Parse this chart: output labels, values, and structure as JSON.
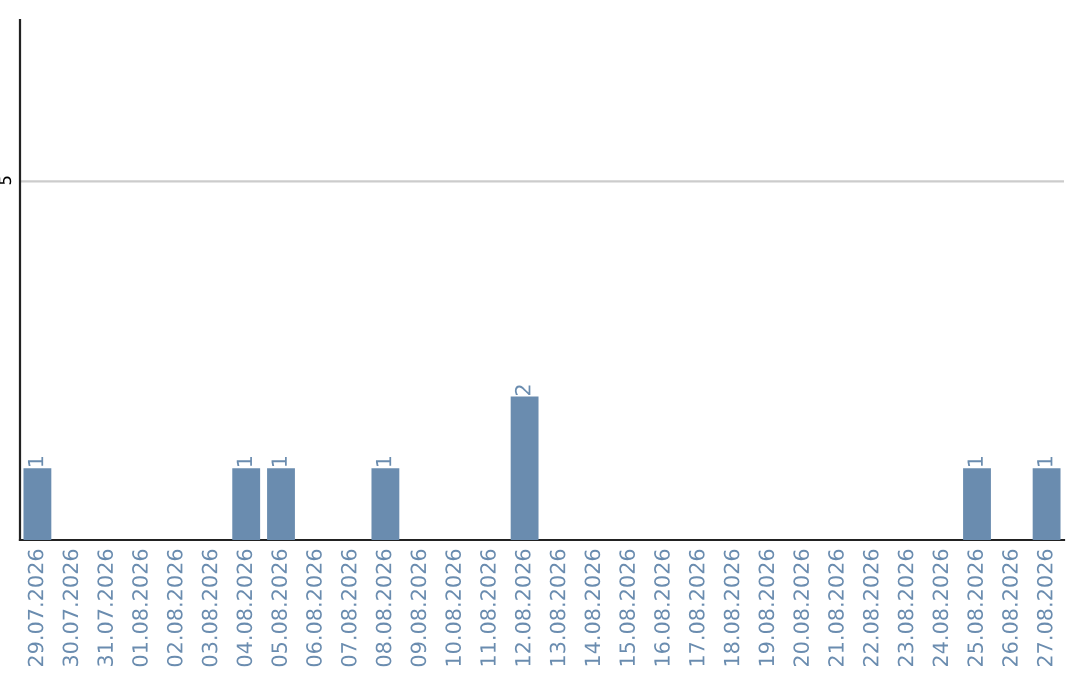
{
  "chart_data": {
    "type": "bar",
    "categories": [
      "29.07.2026",
      "30.07.2026",
      "31.07.2026",
      "01.08.2026",
      "02.08.2026",
      "03.08.2026",
      "04.08.2026",
      "05.08.2026",
      "06.08.2026",
      "07.08.2026",
      "08.08.2026",
      "09.08.2026",
      "10.08.2026",
      "11.08.2026",
      "12.08.2026",
      "13.08.2026",
      "14.08.2026",
      "15.08.2026",
      "16.08.2026",
      "17.08.2026",
      "18.08.2026",
      "19.08.2026",
      "20.08.2026",
      "21.08.2026",
      "22.08.2026",
      "23.08.2026",
      "24.08.2026",
      "25.08.2026",
      "26.08.2026",
      "27.08.2026"
    ],
    "values": [
      1,
      0,
      0,
      0,
      0,
      0,
      1,
      1,
      0,
      0,
      1,
      0,
      0,
      0,
      2,
      0,
      0,
      0,
      0,
      0,
      0,
      0,
      0,
      0,
      0,
      0,
      0,
      1,
      0,
      1
    ],
    "color": "#6a8caf",
    "ylim": [
      0,
      7.25
    ],
    "yticks": [
      5
    ],
    "grid": "y",
    "value_labels": [
      "1",
      null,
      null,
      null,
      null,
      null,
      "1",
      "1",
      null,
      null,
      "1",
      null,
      null,
      null,
      "2",
      null,
      null,
      null,
      null,
      null,
      null,
      null,
      null,
      null,
      null,
      null,
      null,
      "1",
      null,
      "1"
    ]
  }
}
